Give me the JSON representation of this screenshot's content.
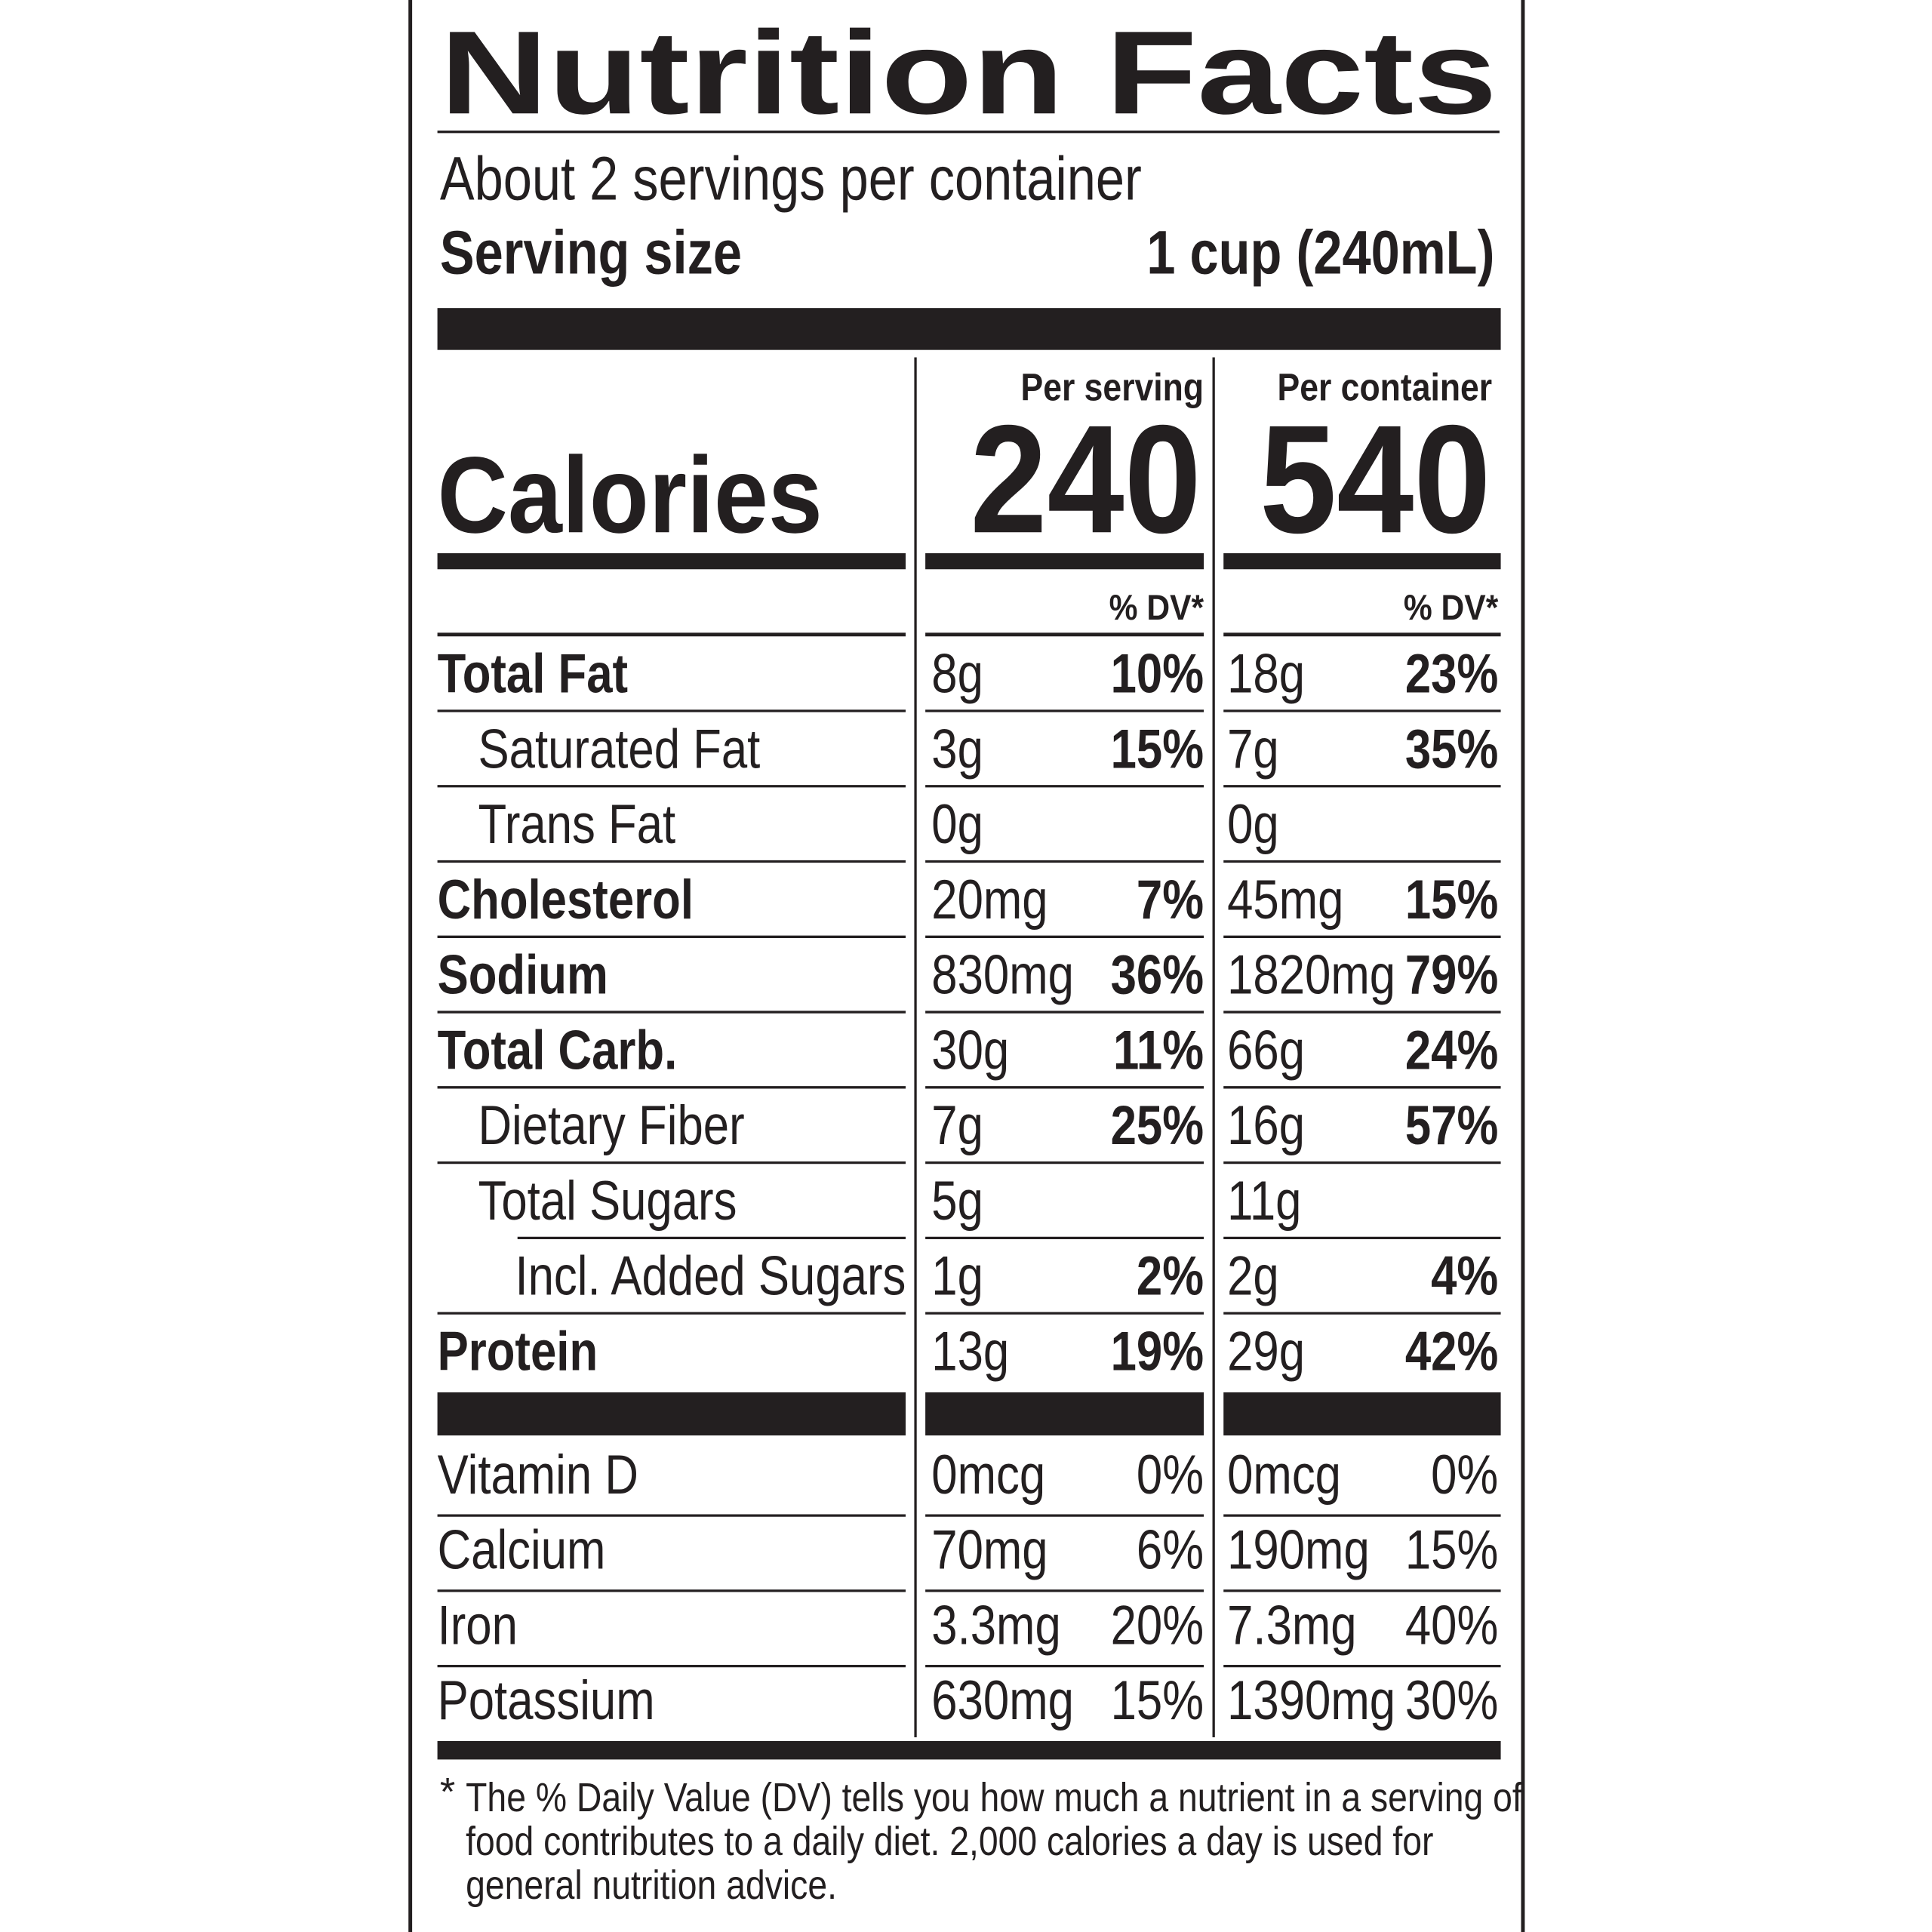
{
  "header": {
    "title": "Nutrition Facts",
    "servings": "About 2 servings per container",
    "serving_size_label": "Serving size",
    "serving_size_value": "1 cup (240mL)"
  },
  "columns": {
    "per_serving": "Per serving",
    "per_container": "Per container",
    "calories_label": "Calories",
    "calories_serving": "240",
    "calories_container": "540",
    "dv_serving": "% DV*",
    "dv_container": "% DV*"
  },
  "rows": [
    {
      "label": "Total Fat",
      "serving_amount": "8g",
      "serving_dv": "10%",
      "container_amount": "18g",
      "container_dv": "23%"
    },
    {
      "label": "Saturated Fat",
      "serving_amount": "3g",
      "serving_dv": "15%",
      "container_amount": "7g",
      "container_dv": "35%"
    },
    {
      "label": "Trans Fat",
      "serving_amount": "0g",
      "container_amount": "0g"
    },
    {
      "label": "Cholesterol",
      "serving_amount": "20mg",
      "serving_dv": "7%",
      "container_amount": "45mg",
      "container_dv": "15%"
    },
    {
      "label": "Sodium",
      "serving_amount": "830mg",
      "serving_dv": "36%",
      "container_amount": "1820mg",
      "container_dv": "79%"
    },
    {
      "label": "Total Carb.",
      "serving_amount": "30g",
      "serving_dv": "11%",
      "container_amount": "66g",
      "container_dv": "24%"
    },
    {
      "label": "Dietary Fiber",
      "serving_amount": "7g",
      "serving_dv": "25%",
      "container_amount": "16g",
      "container_dv": "57%"
    },
    {
      "label": "Total Sugars",
      "serving_amount": "5g",
      "container_amount": "11g"
    },
    {
      "label": "Incl. Added Sugars",
      "serving_amount": "1g",
      "serving_dv": "2%",
      "container_amount": "2g",
      "container_dv": "4%"
    },
    {
      "label": "Protein",
      "serving_amount": "13g",
      "serving_dv": "19%",
      "container_amount": "29g",
      "container_dv": "42%"
    }
  ],
  "vitamins": [
    {
      "label": "Vitamin D",
      "serving_amount": "0mcg",
      "serving_dv": "0%",
      "container_amount": "0mcg",
      "container_dv": "0%"
    },
    {
      "label": "Calcium",
      "serving_amount": "70mg",
      "serving_dv": "6%",
      "container_amount": "190mg",
      "container_dv": "15%"
    },
    {
      "label": "Iron",
      "serving_amount": "3.3mg",
      "serving_dv": "20%",
      "container_amount": "7.3mg",
      "container_dv": "40%"
    },
    {
      "label": "Potassium",
      "serving_amount": "630mg",
      "serving_dv": "15%",
      "container_amount": "1390mg",
      "container_dv": "30%"
    }
  ],
  "footnote": {
    "asterisk": "*",
    "lines": [
      "The % Daily Value (DV) tells you how much a nutrient in a serving of",
      "food contributes to a daily diet. 2,000 calories a day is used for",
      "general nutrition advice."
    ]
  }
}
